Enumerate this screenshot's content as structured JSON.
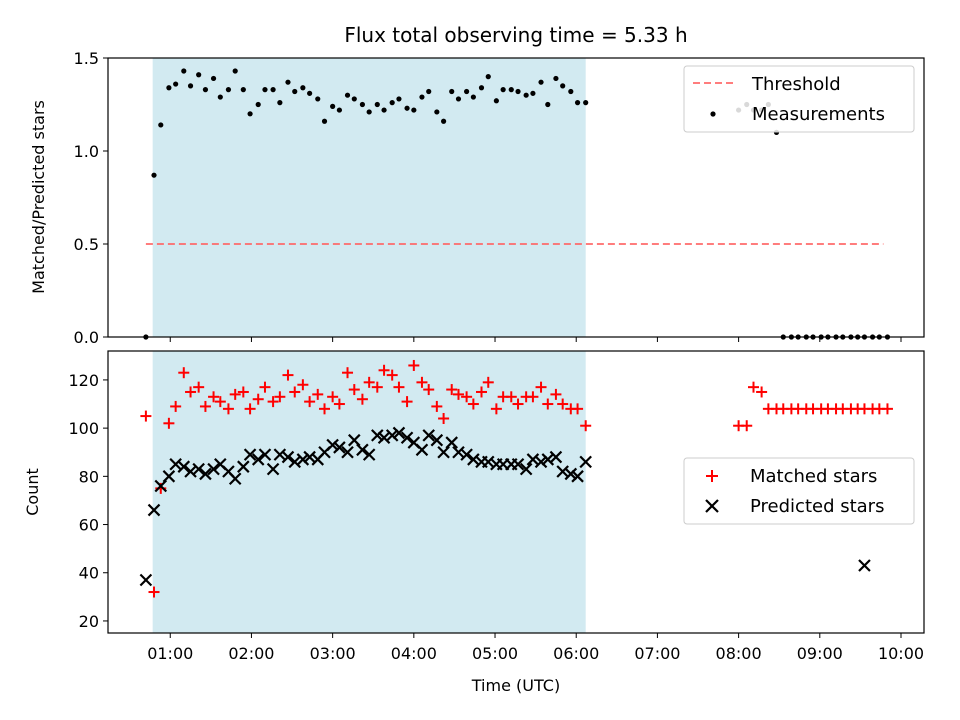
{
  "chart_data": [
    {
      "type": "scatter",
      "title": "Flux total observing time = 5.33 h",
      "ylabel": "Matched/Predicted stars",
      "xlabel": "",
      "ylim": [
        0,
        1.5
      ],
      "yticks": [
        "0.0",
        "0.5",
        "1.0",
        "1.5"
      ],
      "shaded_span": [
        "00:47",
        "06:07"
      ],
      "shade_color": "#add8e6",
      "threshold": {
        "name": "Threshold",
        "value": 0.5,
        "x_range": [
          "00:42",
          "09:47"
        ],
        "color": "#ff6666"
      },
      "legend": {
        "position": "top-right",
        "entries": [
          "Threshold",
          "Measurements"
        ]
      },
      "series": [
        {
          "name": "Measurements",
          "color": "#000000",
          "x": [
            "00:42",
            "00:48",
            "00:53",
            "00:59",
            "01:04",
            "01:10",
            "01:15",
            "01:21",
            "01:26",
            "01:32",
            "01:37",
            "01:43",
            "01:48",
            "01:54",
            "01:59",
            "02:05",
            "02:10",
            "02:16",
            "02:21",
            "02:27",
            "02:32",
            "02:38",
            "02:43",
            "02:49",
            "02:54",
            "03:00",
            "03:05",
            "03:11",
            "03:16",
            "03:22",
            "03:27",
            "03:33",
            "03:38",
            "03:44",
            "03:49",
            "03:55",
            "04:00",
            "04:06",
            "04:11",
            "04:17",
            "04:22",
            "04:28",
            "04:33",
            "04:39",
            "04:44",
            "04:50",
            "04:55",
            "05:01",
            "05:06",
            "05:12",
            "05:17",
            "05:23",
            "05:28",
            "05:34",
            "05:39",
            "05:45",
            "05:50",
            "05:56",
            "06:01",
            "06:07",
            "08:00",
            "08:06",
            "08:11",
            "08:17",
            "08:22",
            "08:28",
            "08:33",
            "08:39",
            "08:44",
            "08:50",
            "08:55",
            "09:01",
            "09:06",
            "09:12",
            "09:17",
            "09:23",
            "09:28",
            "09:33",
            "09:39",
            "09:44",
            "09:50"
          ],
          "y": [
            0.0,
            0.87,
            1.14,
            1.34,
            1.36,
            1.43,
            1.35,
            1.41,
            1.33,
            1.39,
            1.29,
            1.33,
            1.43,
            1.33,
            1.2,
            1.25,
            1.33,
            1.33,
            1.26,
            1.37,
            1.32,
            1.34,
            1.31,
            1.28,
            1.16,
            1.24,
            1.22,
            1.3,
            1.28,
            1.25,
            1.21,
            1.25,
            1.22,
            1.26,
            1.28,
            1.23,
            1.22,
            1.29,
            1.32,
            1.21,
            1.16,
            1.32,
            1.28,
            1.32,
            1.29,
            1.34,
            1.4,
            1.27,
            1.33,
            1.33,
            1.32,
            1.3,
            1.31,
            1.37,
            1.25,
            1.39,
            1.35,
            1.32,
            1.26,
            1.26,
            1.22,
            1.25,
            1.22,
            1.22,
            1.25,
            1.1,
            0.0,
            0.0,
            0.0,
            0.0,
            0.0,
            0.0,
            0.0,
            0.0,
            0.0,
            0.0,
            0.0,
            0.0,
            0.0,
            0.0,
            0.0
          ]
        }
      ]
    },
    {
      "type": "scatter",
      "title": "",
      "ylabel": "Count",
      "xlabel": "Time (UTC)",
      "ylim": [
        15,
        132
      ],
      "yticks": [
        "20",
        "40",
        "60",
        "80",
        "100",
        "120"
      ],
      "xticks": [
        "01:00",
        "02:00",
        "03:00",
        "04:00",
        "05:00",
        "06:00",
        "07:00",
        "08:00",
        "09:00",
        "10:00"
      ],
      "legend": {
        "position": "right",
        "entries": [
          "Matched stars",
          "Predicted stars"
        ]
      },
      "series": [
        {
          "name": "Matched stars",
          "marker": "plus",
          "color": "#ff0000",
          "x": [
            "00:42",
            "00:48",
            "00:53",
            "00:59",
            "01:04",
            "01:10",
            "01:15",
            "01:21",
            "01:26",
            "01:32",
            "01:37",
            "01:43",
            "01:48",
            "01:54",
            "01:59",
            "02:05",
            "02:10",
            "02:16",
            "02:21",
            "02:27",
            "02:32",
            "02:38",
            "02:43",
            "02:49",
            "02:54",
            "03:00",
            "03:05",
            "03:11",
            "03:16",
            "03:22",
            "03:27",
            "03:33",
            "03:38",
            "03:44",
            "03:49",
            "03:55",
            "04:00",
            "04:06",
            "04:11",
            "04:17",
            "04:22",
            "04:28",
            "04:33",
            "04:39",
            "04:44",
            "04:50",
            "04:55",
            "05:01",
            "05:06",
            "05:12",
            "05:17",
            "05:23",
            "05:28",
            "05:34",
            "05:39",
            "05:45",
            "05:50",
            "05:56",
            "06:01",
            "06:07",
            "08:00",
            "08:06",
            "08:11",
            "08:17",
            "08:22",
            "08:28",
            "08:33",
            "08:39",
            "08:44",
            "08:50",
            "08:55",
            "09:01",
            "09:06",
            "09:12",
            "09:17",
            "09:23",
            "09:28",
            "09:33",
            "09:39",
            "09:44",
            "09:50"
          ],
          "y": [
            105,
            32,
            75,
            102,
            109,
            123,
            115,
            117,
            109,
            113,
            111,
            108,
            114,
            115,
            108,
            112,
            117,
            111,
            113,
            122,
            115,
            118,
            111,
            114,
            108,
            113,
            110,
            123,
            116,
            112,
            119,
            117,
            124,
            122,
            117,
            111,
            126,
            119,
            116,
            109,
            104,
            116,
            114,
            113,
            110,
            115,
            119,
            108,
            113,
            113,
            110,
            113,
            113,
            117,
            110,
            114,
            110,
            108,
            108,
            101,
            101,
            101,
            117,
            115,
            108,
            108,
            108,
            108,
            108,
            108,
            108,
            108,
            108,
            108,
            108,
            108,
            108,
            108,
            108,
            108,
            108
          ]
        },
        {
          "name": "Predicted stars",
          "marker": "x",
          "color": "#000000",
          "x": [
            "00:42",
            "00:48",
            "00:53",
            "00:59",
            "01:04",
            "01:10",
            "01:15",
            "01:21",
            "01:26",
            "01:32",
            "01:37",
            "01:43",
            "01:48",
            "01:54",
            "01:59",
            "02:05",
            "02:10",
            "02:16",
            "02:21",
            "02:27",
            "02:32",
            "02:38",
            "02:43",
            "02:49",
            "02:54",
            "03:00",
            "03:05",
            "03:11",
            "03:16",
            "03:22",
            "03:27",
            "03:33",
            "03:38",
            "03:44",
            "03:49",
            "03:55",
            "04:00",
            "04:06",
            "04:11",
            "04:17",
            "04:22",
            "04:28",
            "04:33",
            "04:39",
            "04:44",
            "04:50",
            "04:55",
            "05:01",
            "05:06",
            "05:12",
            "05:17",
            "05:23",
            "05:28",
            "05:34",
            "05:39",
            "05:45",
            "05:50",
            "05:56",
            "06:01",
            "06:07",
            "09:33"
          ],
          "y": [
            37,
            66,
            76,
            80,
            85,
            84,
            82,
            83,
            81,
            83,
            85,
            82,
            79,
            84,
            89,
            87,
            89,
            83,
            89,
            88,
            86,
            87,
            88,
            87,
            90,
            93,
            92,
            90,
            95,
            91,
            89,
            97,
            96,
            97,
            98,
            96,
            94,
            91,
            97,
            95,
            90,
            94,
            90,
            89,
            87,
            86,
            86,
            85,
            85,
            85,
            85,
            83,
            87,
            86,
            87,
            88,
            82,
            81,
            80,
            86,
            43
          ]
        }
      ]
    }
  ]
}
